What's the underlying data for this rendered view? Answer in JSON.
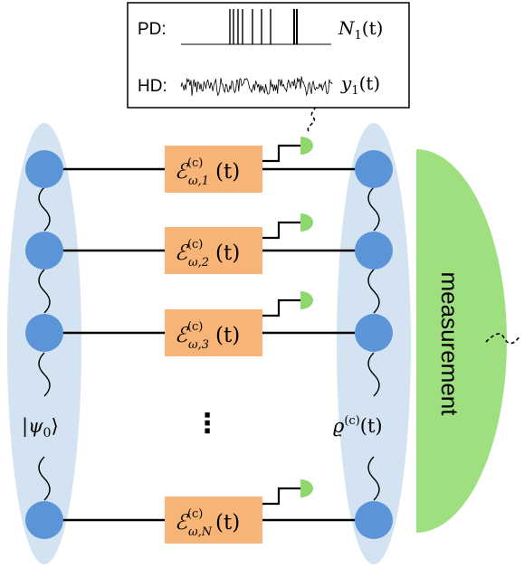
{
  "inset": {
    "pd_label": "PD:",
    "pd_signal": "N",
    "pd_signal_sub": "1",
    "pd_signal_arg": "(t)",
    "hd_label": "HD:",
    "hd_signal": "y",
    "hd_signal_sub": "1",
    "hd_signal_arg": "(t)"
  },
  "initial_state": {
    "bar": "|",
    "symbol": "ψ",
    "sub": "0",
    "ket_close": "⟩"
  },
  "conditional_state": {
    "symbol": "ϱ",
    "sup": "(c)",
    "arg": "(t)"
  },
  "channels": [
    {
      "symbol": "ℰ",
      "sup": "(c)",
      "sub": "ω,1",
      "arg": "(t)"
    },
    {
      "symbol": "ℰ",
      "sup": "(c)",
      "sub": "ω,2",
      "arg": "(t)"
    },
    {
      "symbol": "ℰ",
      "sup": "(c)",
      "sub": "ω,3",
      "arg": "(t)"
    },
    {
      "symbol": "ℰ",
      "sup": "(c)",
      "sub": "ω,N",
      "arg": "(t)"
    }
  ],
  "ellipsis": "⋮",
  "measurement_label": "measurement",
  "colors": {
    "ellipse": "#d4e3f1",
    "qubit": "#5b95d8",
    "channel_box": "#f8b477",
    "detector": "#8ed86f",
    "measurement": "#9ee07f"
  }
}
